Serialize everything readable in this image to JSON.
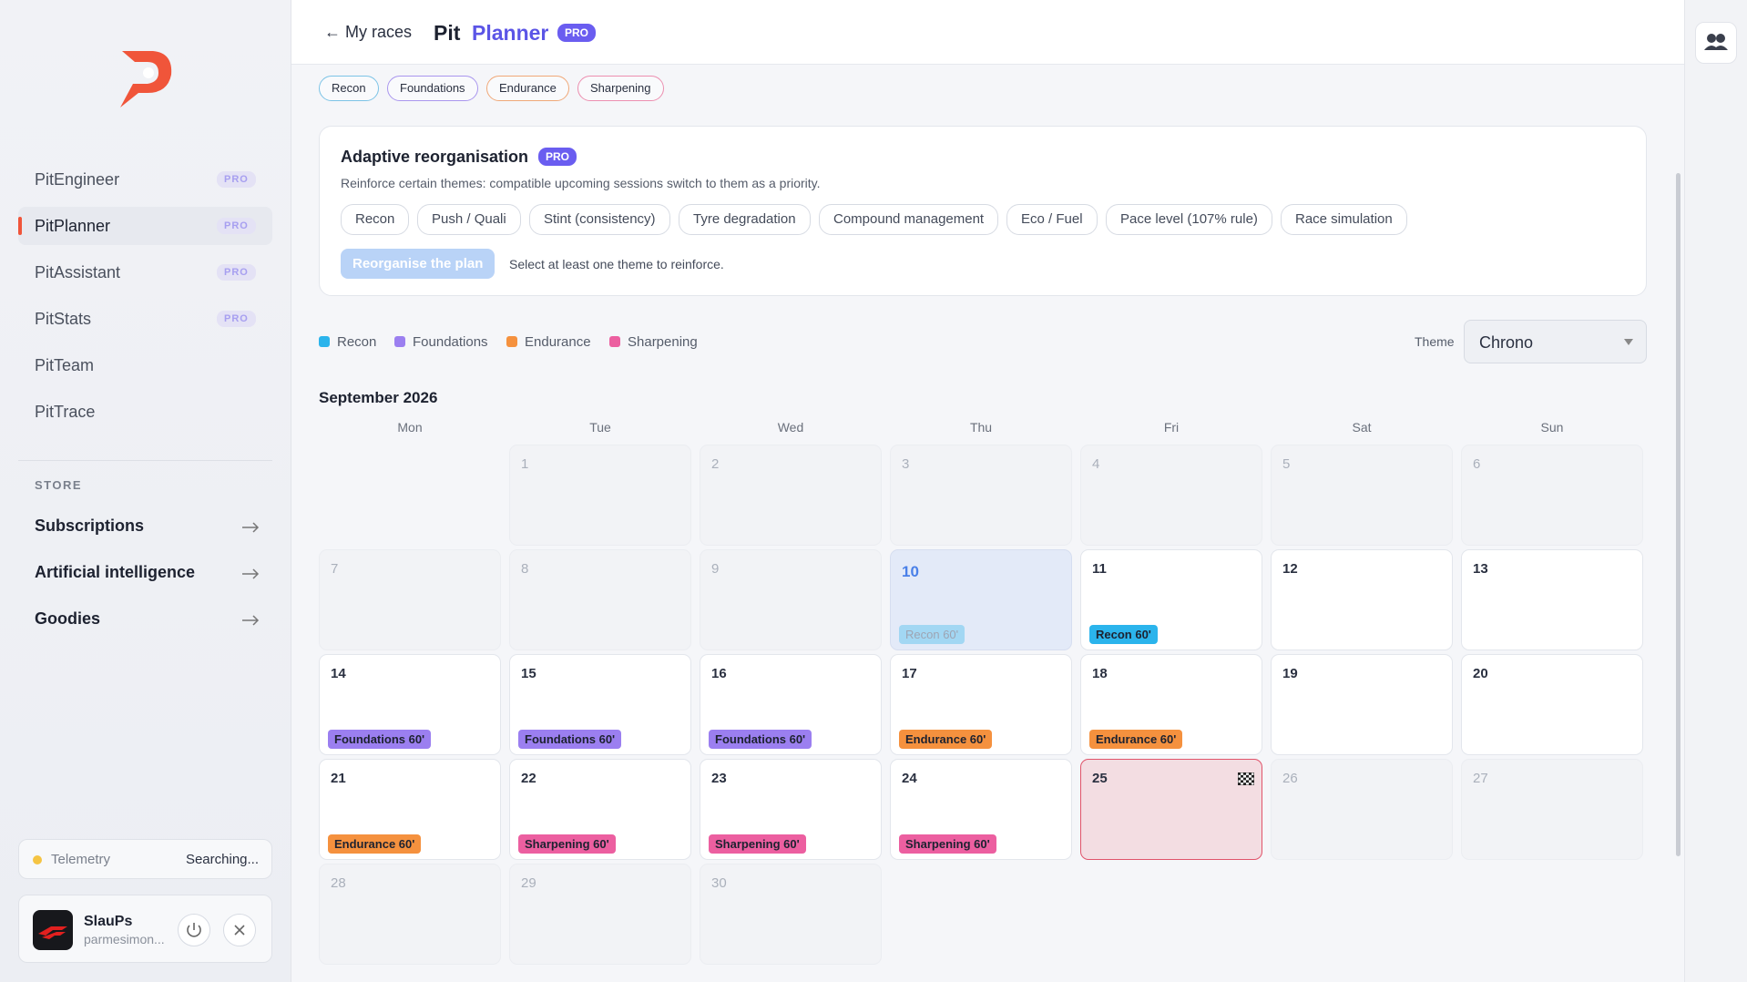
{
  "sidebar": {
    "nav": [
      {
        "label": "PitEngineer",
        "badge": "PRO"
      },
      {
        "label": "PitPlanner",
        "badge": "PRO",
        "active": true
      },
      {
        "label": "PitAssistant",
        "badge": "PRO"
      },
      {
        "label": "PitStats",
        "badge": "PRO"
      },
      {
        "label": "PitTeam"
      },
      {
        "label": "PitTrace"
      }
    ],
    "store_title": "STORE",
    "store": [
      "Subscriptions",
      "Artificial intelligence",
      "Goodies"
    ],
    "telemetry": {
      "label": "Telemetry",
      "status": "Searching..."
    },
    "user": {
      "name": "SlauPs",
      "handle": "parmesimon..."
    }
  },
  "header": {
    "back": "← My races",
    "title_a": "Pit",
    "title_b": "Planner",
    "badge": "PRO"
  },
  "filters": [
    {
      "label": "Recon",
      "color": "#7cc3e6"
    },
    {
      "label": "Foundations",
      "color": "#a996ee"
    },
    {
      "label": "Endurance",
      "color": "#f0a878"
    },
    {
      "label": "Sharpening",
      "color": "#ec8fb0"
    }
  ],
  "adaptive": {
    "title": "Adaptive reorganisation",
    "badge": "PRO",
    "description": "Reinforce certain themes: compatible upcoming sessions switch to them as a priority.",
    "themes": [
      "Recon",
      "Push / Quali",
      "Stint (consistency)",
      "Tyre degradation",
      "Compound management",
      "Eco / Fuel",
      "Pace level (107% rule)",
      "Race simulation"
    ],
    "button": "Reorganise the plan",
    "hint": "Select at least one theme to reinforce."
  },
  "legend": [
    {
      "label": "Recon",
      "color": "#2bb4ec"
    },
    {
      "label": "Foundations",
      "color": "#9b7ff0"
    },
    {
      "label": "Endurance",
      "color": "#f5913e"
    },
    {
      "label": "Sharpening",
      "color": "#ec5fa0"
    }
  ],
  "theme_select": {
    "label": "Theme",
    "value": "Chrono"
  },
  "calendar": {
    "month": "September 2026",
    "weekdays": [
      "Mon",
      "Tue",
      "Wed",
      "Thu",
      "Fri",
      "Sat",
      "Sun"
    ],
    "weeks": [
      [
        null,
        {
          "day": 1,
          "muted": true
        },
        {
          "day": 2,
          "muted": true
        },
        {
          "day": 3,
          "muted": true
        },
        {
          "day": 4,
          "muted": true
        },
        {
          "day": 5,
          "muted": true
        },
        {
          "day": 6,
          "muted": true
        }
      ],
      [
        {
          "day": 7,
          "muted": true
        },
        {
          "day": 8,
          "muted": true
        },
        {
          "day": 9,
          "muted": true
        },
        {
          "day": 10,
          "today": true,
          "session": {
            "label": "Recon 60'",
            "color": "#2bb4ec"
          }
        },
        {
          "day": 11,
          "session": {
            "label": "Recon 60'",
            "color": "#2bb4ec"
          }
        },
        {
          "day": 12
        },
        {
          "day": 13
        }
      ],
      [
        {
          "day": 14,
          "session": {
            "label": "Foundations 60'",
            "color": "#9b7ff0"
          }
        },
        {
          "day": 15,
          "session": {
            "label": "Foundations 60'",
            "color": "#9b7ff0"
          }
        },
        {
          "day": 16,
          "session": {
            "label": "Foundations 60'",
            "color": "#9b7ff0"
          }
        },
        {
          "day": 17,
          "session": {
            "label": "Endurance 60'",
            "color": "#f5913e"
          }
        },
        {
          "day": 18,
          "session": {
            "label": "Endurance 60'",
            "color": "#f5913e"
          }
        },
        {
          "day": 19
        },
        {
          "day": 20
        }
      ],
      [
        {
          "day": 21,
          "session": {
            "label": "Endurance 60'",
            "color": "#f5913e"
          }
        },
        {
          "day": 22,
          "session": {
            "label": "Sharpening 60'",
            "color": "#ec5fa0"
          }
        },
        {
          "day": 23,
          "session": {
            "label": "Sharpening 60'",
            "color": "#ec5fa0"
          }
        },
        {
          "day": 24,
          "session": {
            "label": "Sharpening 60'",
            "color": "#ec5fa0"
          }
        },
        {
          "day": 25,
          "race": true
        },
        {
          "day": 26,
          "muted": true
        },
        {
          "day": 27,
          "muted": true
        }
      ],
      [
        {
          "day": 28,
          "muted": true
        },
        {
          "day": 29,
          "muted": true
        },
        {
          "day": 30,
          "muted": true
        },
        null,
        null,
        null,
        null
      ]
    ]
  }
}
